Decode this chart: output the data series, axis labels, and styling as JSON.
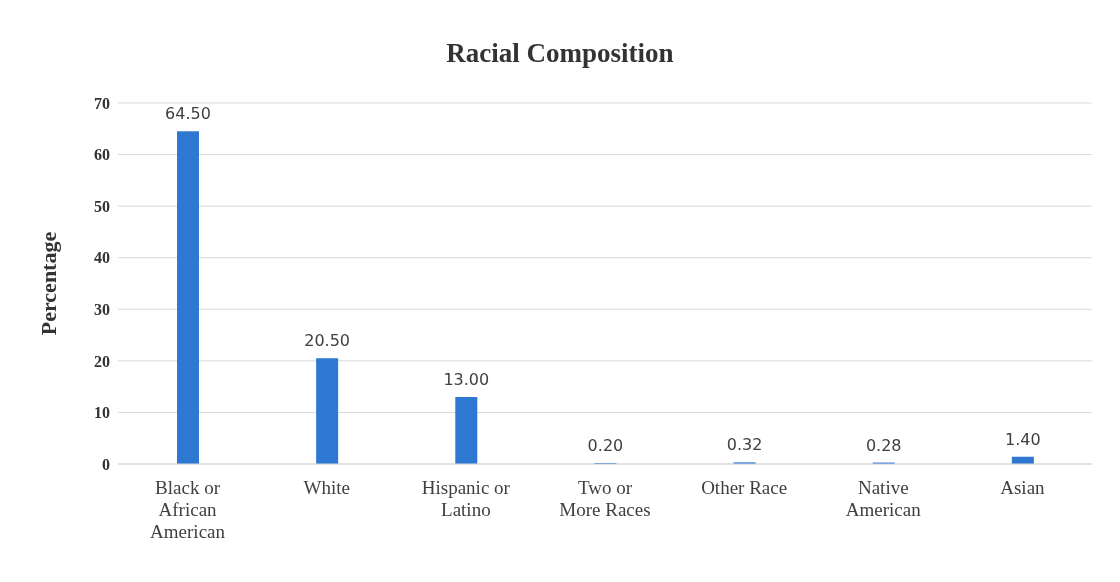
{
  "chart_data": {
    "type": "bar",
    "title": "Racial Composition",
    "ylabel": "Percentage",
    "categories": [
      "Black or\nAfrican\nAmerican",
      "White",
      "Hispanic or\nLatino",
      "Two or\nMore Races",
      "Other Race",
      "Native\nAmerican",
      "Asian"
    ],
    "values": [
      64.5,
      20.5,
      13,
      0.2,
      0.32,
      0.28,
      1.4
    ],
    "value_labels": [
      "64.50",
      "20.50",
      "13.00",
      "0.20",
      "0.32",
      "0.28",
      "1.40"
    ],
    "color": "#2f78d2",
    "ylim": [
      0,
      70
    ],
    "yticks": [
      0,
      10,
      20,
      30,
      40,
      50,
      60,
      70
    ],
    "grid": "y"
  }
}
